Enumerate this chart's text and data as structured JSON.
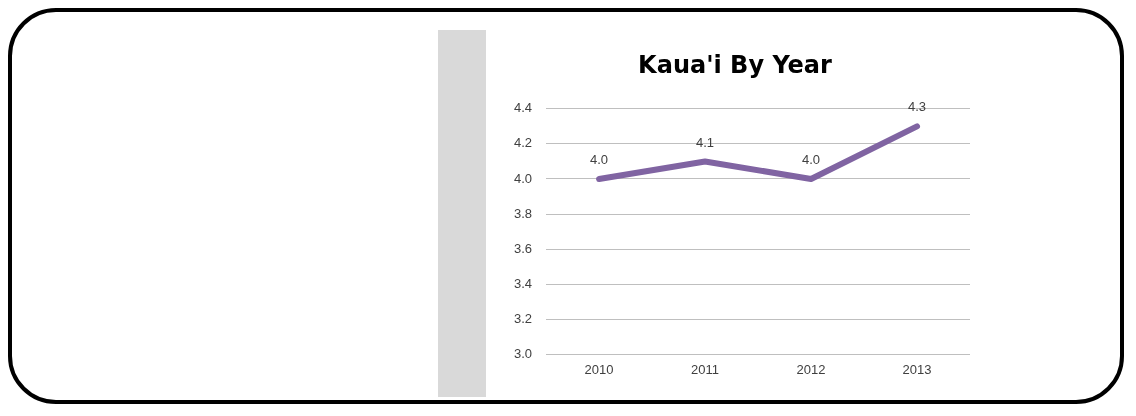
{
  "chart_data": {
    "type": "line",
    "title": "Kaua'i By Year",
    "categories": [
      "2010",
      "2011",
      "2012",
      "2013"
    ],
    "series": [
      {
        "color": "#8064a2",
        "values": [
          4.0,
          4.1,
          4.0,
          4.3
        ]
      }
    ],
    "value_labels": [
      "4.0",
      "4.1",
      "4.0",
      "4.3"
    ],
    "ylim": [
      3.0,
      4.4
    ],
    "yticks": [
      {
        "value": 3.0,
        "label": "3.0"
      },
      {
        "value": 3.2,
        "label": "3.2"
      },
      {
        "value": 3.4,
        "label": "3.4"
      },
      {
        "value": 3.6,
        "label": "3.6"
      },
      {
        "value": 3.8,
        "label": "3.8"
      },
      {
        "value": 4.0,
        "label": "4.0"
      },
      {
        "value": 4.2,
        "label": "4.2"
      },
      {
        "value": 4.4,
        "label": "4.4"
      }
    ],
    "grid": "y",
    "legend": false,
    "marker": "none",
    "line_style": "solid"
  }
}
